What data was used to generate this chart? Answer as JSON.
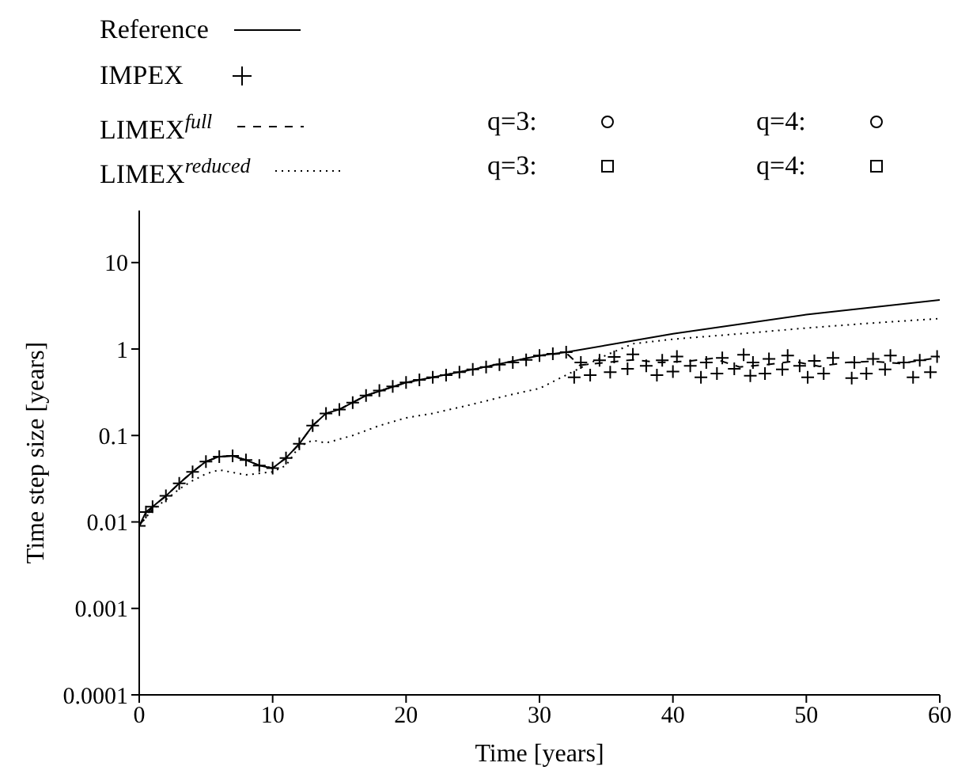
{
  "chart_data": {
    "type": "line",
    "xlabel": "Time [years]",
    "ylabel": "Time step size [years]",
    "log": "y",
    "grid": false,
    "legend": "top",
    "xlim": [
      0,
      60
    ],
    "xticks": [
      0,
      10,
      20,
      30,
      40,
      50,
      60
    ],
    "ylim": [
      0.0001,
      40
    ],
    "yticks": [
      0.0001,
      0.001,
      0.01,
      0.1,
      1,
      10
    ],
    "series": [
      {
        "name": "Reference",
        "line_style": "solid",
        "marker": "none",
        "color": "#000000",
        "x": [
          0,
          0.5,
          1,
          2,
          3,
          4,
          5,
          6,
          7,
          8,
          9,
          10,
          11,
          12,
          13,
          14,
          15,
          17,
          20,
          25,
          30,
          32,
          37,
          40,
          50,
          60
        ],
        "values": [
          0.009,
          0.013,
          0.015,
          0.02,
          0.028,
          0.038,
          0.05,
          0.057,
          0.058,
          0.052,
          0.045,
          0.042,
          0.055,
          0.08,
          0.13,
          0.18,
          0.2,
          0.29,
          0.41,
          0.58,
          0.84,
          0.92,
          1.25,
          1.5,
          2.5,
          3.7
        ]
      },
      {
        "name": "IMPEX",
        "type": "scatter",
        "marker": "cross",
        "color": "#000000",
        "x": [
          0,
          0.5,
          1,
          2,
          3,
          4,
          5,
          6,
          7,
          8,
          9,
          10,
          11,
          12,
          13,
          14,
          15,
          16,
          17,
          18,
          19,
          20,
          21,
          22,
          23,
          24,
          25,
          26,
          27,
          28,
          29,
          30,
          31,
          32,
          32.6,
          33.1,
          33.8,
          34.5,
          35.3,
          35.6,
          36.6,
          37,
          38,
          38.8,
          39.2,
          40,
          40.3,
          41.3,
          42.1,
          42.5,
          43.3,
          43.7,
          44.6,
          45.3,
          45.8,
          46,
          46.9,
          47.2,
          48.2,
          48.6,
          49.5,
          50.1,
          50.6,
          51.3,
          52,
          53.4,
          53.6,
          54.5,
          55,
          55.9,
          56.3,
          57.3,
          58,
          58.5,
          59.3,
          59.8
        ],
        "values": [
          0.009,
          0.013,
          0.015,
          0.02,
          0.028,
          0.038,
          0.05,
          0.057,
          0.058,
          0.052,
          0.045,
          0.042,
          0.055,
          0.08,
          0.13,
          0.18,
          0.2,
          0.24,
          0.29,
          0.33,
          0.37,
          0.41,
          0.44,
          0.47,
          0.5,
          0.54,
          0.58,
          0.62,
          0.66,
          0.7,
          0.75,
          0.84,
          0.88,
          0.92,
          0.47,
          0.7,
          0.5,
          0.74,
          0.54,
          0.81,
          0.59,
          0.87,
          0.64,
          0.5,
          0.74,
          0.55,
          0.82,
          0.64,
          0.47,
          0.7,
          0.52,
          0.79,
          0.59,
          0.86,
          0.49,
          0.7,
          0.52,
          0.77,
          0.58,
          0.84,
          0.64,
          0.47,
          0.73,
          0.52,
          0.79,
          0.46,
          0.7,
          0.52,
          0.77,
          0.58,
          0.84,
          0.7,
          0.47,
          0.74,
          0.54,
          0.82
        ]
      },
      {
        "name": "LIMEX$^{full}$",
        "line_style": "dashed",
        "marker": "none",
        "color": "#000000",
        "x": [
          0,
          1,
          2,
          3,
          4,
          5,
          6,
          7,
          8,
          9,
          10,
          11,
          12,
          13,
          14,
          15,
          17,
          20,
          25,
          30,
          32,
          33,
          35,
          37,
          39,
          41,
          43,
          45,
          47,
          49,
          51,
          53,
          55,
          57,
          60
        ],
        "values": [
          0.009,
          0.015,
          0.02,
          0.028,
          0.038,
          0.05,
          0.057,
          0.058,
          0.052,
          0.045,
          0.042,
          0.055,
          0.08,
          0.13,
          0.18,
          0.2,
          0.29,
          0.41,
          0.58,
          0.84,
          0.9,
          0.65,
          0.7,
          0.75,
          0.7,
          0.72,
          0.78,
          0.62,
          0.66,
          0.72,
          0.63,
          0.7,
          0.72,
          0.68,
          0.8
        ]
      },
      {
        "name": "LIMEX$^{reduced}$",
        "line_style": "dotted",
        "marker": "none",
        "color": "#000000",
        "x": [
          0,
          1,
          2,
          3,
          4,
          5,
          6,
          8,
          10,
          11,
          12,
          13,
          14,
          16,
          18,
          20,
          22,
          25,
          28,
          30,
          32,
          35,
          37,
          40,
          45,
          50,
          55,
          60
        ],
        "values": [
          0.009,
          0.014,
          0.018,
          0.024,
          0.03,
          0.036,
          0.04,
          0.035,
          0.038,
          0.045,
          0.075,
          0.088,
          0.082,
          0.1,
          0.13,
          0.16,
          0.18,
          0.23,
          0.3,
          0.35,
          0.5,
          0.85,
          1.15,
          1.3,
          1.5,
          1.75,
          2,
          2.25
        ]
      },
      {
        "name": "q=3:",
        "type": "scatter",
        "marker": "circle",
        "color": "#000000"
      },
      {
        "name": "q=4:",
        "type": "scatter",
        "marker": "circle",
        "color": "#000000"
      },
      {
        "name": "q=3:",
        "type": "scatter",
        "marker": "square",
        "color": "#000000"
      },
      {
        "name": "q=4:",
        "type": "scatter",
        "marker": "square",
        "color": "#000000"
      }
    ]
  }
}
